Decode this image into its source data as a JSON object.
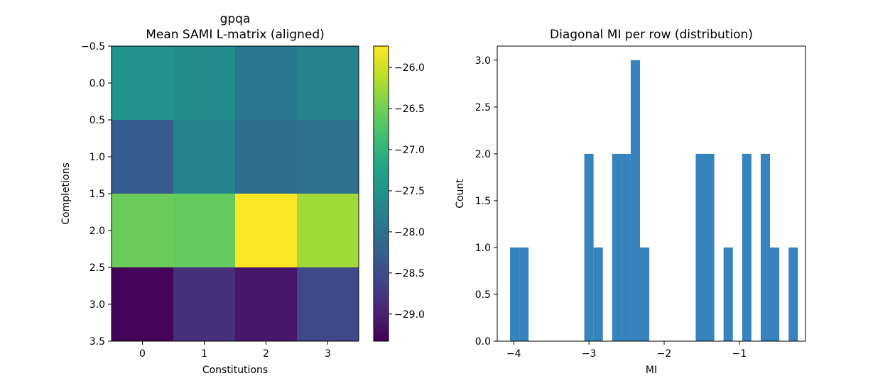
{
  "chart_data": [
    {
      "type": "heatmap",
      "title": "gpqa",
      "subtitle": "Mean SAMI L-matrix (aligned)",
      "xlabel": "Constitutions",
      "ylabel": "Completions",
      "xticks": [
        "0",
        "1",
        "2",
        "3"
      ],
      "yticks": [
        "−0.5",
        "0.0",
        "0.5",
        "1.0",
        "1.5",
        "2.0",
        "2.5",
        "3.0",
        "3.5"
      ],
      "ytick_values": [
        -0.5,
        0.0,
        0.5,
        1.0,
        1.5,
        2.0,
        2.5,
        3.0,
        3.5
      ],
      "ylim": [
        3.5,
        -0.5
      ],
      "colormap": "viridis",
      "values": [
        [
          -27.5,
          -27.6,
          -27.9,
          -27.75
        ],
        [
          -28.3,
          -27.75,
          -28.05,
          -28.0
        ],
        [
          -26.55,
          -26.6,
          -25.75,
          -26.25
        ],
        [
          -29.3,
          -28.85,
          -29.1,
          -28.55
        ]
      ],
      "colorbar": {
        "vmin": -29.33,
        "vmax": -25.74,
        "ticks": [
          -26.0,
          -26.5,
          -27.0,
          -27.5,
          -28.0,
          -28.5,
          -29.0
        ],
        "tick_labels": [
          "−26.0",
          "−26.5",
          "−27.0",
          "−27.5",
          "−28.0",
          "−28.5",
          "−29.0"
        ]
      }
    },
    {
      "type": "bar",
      "subtype": "histogram",
      "title": "Diagonal MI per row (distribution)",
      "xlabel": "MI",
      "ylabel": "Count",
      "color": "#3683bd",
      "bins": {
        "start": -4.05,
        "width": 0.1235,
        "counts": [
          1,
          1,
          0,
          0,
          0,
          0,
          0,
          0,
          2,
          1,
          0,
          2,
          2,
          3,
          1,
          0,
          0,
          0,
          0,
          0,
          2,
          2,
          0,
          1,
          0,
          2,
          0,
          2,
          1,
          0,
          1
        ]
      },
      "xlim": [
        -4.22,
        -0.12
      ],
      "ylim": [
        0,
        3.15
      ],
      "xticks": [
        -4,
        -3,
        -2,
        -1
      ],
      "xtick_labels": [
        "−4",
        "−3",
        "−2",
        "−1"
      ],
      "yticks": [
        0.0,
        0.5,
        1.0,
        1.5,
        2.0,
        2.5,
        3.0
      ],
      "ytick_labels": [
        "0.0",
        "0.5",
        "1.0",
        "1.5",
        "2.0",
        "2.5",
        "3.0"
      ]
    }
  ]
}
